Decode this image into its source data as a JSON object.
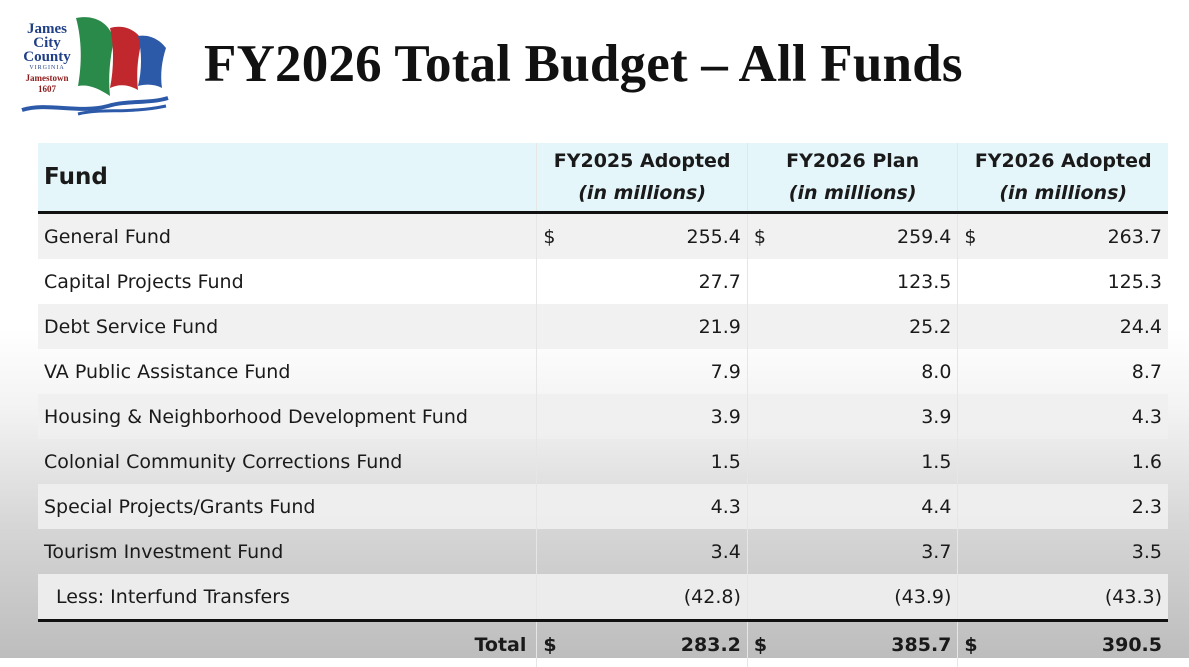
{
  "logo": {
    "line1": "James",
    "line2": "City",
    "line3": "County",
    "state": "VIRGINIA",
    "town": "Jamestown",
    "year": "1607",
    "colors": [
      "#2a8a4a",
      "#c0282d",
      "#2d5aa8"
    ]
  },
  "title": "FY2026 Total Budget – All Funds",
  "table": {
    "headers": {
      "fund": "Fund",
      "col1": "FY2025 Adopted",
      "col2": "FY2026 Plan",
      "col3": "FY2026 Adopted",
      "sub": "(in millions)"
    },
    "rows": [
      {
        "name": "General Fund",
        "cur": "$",
        "v1": "255.4",
        "v2": "259.4",
        "v3": "263.7"
      },
      {
        "name": "Capital Projects Fund",
        "cur": "",
        "v1": "27.7",
        "v2": "123.5",
        "v3": "125.3"
      },
      {
        "name": "Debt Service Fund",
        "cur": "",
        "v1": "21.9",
        "v2": "25.2",
        "v3": "24.4"
      },
      {
        "name": "VA Public Assistance Fund",
        "cur": "",
        "v1": "7.9",
        "v2": "8.0",
        "v3": "8.7"
      },
      {
        "name": "Housing & Neighborhood Development Fund",
        "cur": "",
        "v1": "3.9",
        "v2": "3.9",
        "v3": "4.3"
      },
      {
        "name": "Colonial Community Corrections Fund",
        "cur": "",
        "v1": "1.5",
        "v2": "1.5",
        "v3": "1.6"
      },
      {
        "name": "Special Projects/Grants Fund",
        "cur": "",
        "v1": "4.3",
        "v2": "4.4",
        "v3": "2.3"
      },
      {
        "name": "Tourism Investment Fund",
        "cur": "",
        "v1": "3.4",
        "v2": "3.7",
        "v3": "3.5"
      },
      {
        "name": "Less: Interfund Transfers",
        "cur": "",
        "v1": "(42.8)",
        "v2": "(43.9)",
        "v3": "(43.3)"
      }
    ],
    "total": {
      "label": "Total",
      "cur": "$",
      "v1": "283.2",
      "v2": "385.7",
      "v3": "390.5"
    }
  }
}
